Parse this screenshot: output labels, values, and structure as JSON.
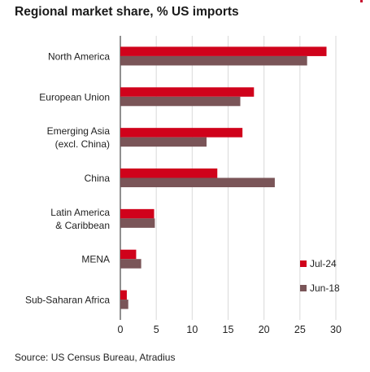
{
  "chart_data": {
    "type": "bar",
    "orientation": "horizontal",
    "title": "Regional market share, % US imports",
    "categories": [
      [
        "North America"
      ],
      [
        "European Union"
      ],
      [
        "Emerging Asia",
        "(excl. China)"
      ],
      [
        "China"
      ],
      [
        "Latin America",
        "& Caribbean"
      ],
      [
        "MENA"
      ],
      [
        "Sub-Saharan Africa"
      ]
    ],
    "series": [
      {
        "name": "Jul-24",
        "color": "#d0021b",
        "values": [
          28.7,
          18.6,
          17.0,
          13.5,
          4.7,
          2.2,
          0.9
        ]
      },
      {
        "name": "Jun-18",
        "color": "#7a5558",
        "values": [
          26.0,
          16.7,
          12.0,
          21.5,
          4.8,
          2.9,
          1.1
        ]
      }
    ],
    "xlim": [
      0,
      30
    ],
    "xticks": [
      "0",
      "5",
      "10",
      "15",
      "20",
      "25",
      "30"
    ],
    "grid": "vertical",
    "legend_position": "bottom-right",
    "xlabel": "",
    "ylabel": ""
  },
  "source": "Source: US Census Bureau, Atradius"
}
